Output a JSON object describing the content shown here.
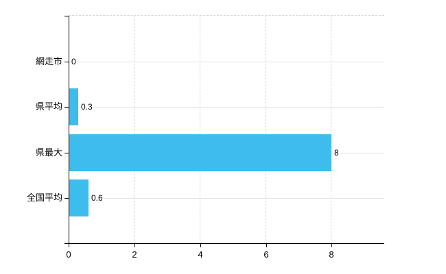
{
  "chart_data": {
    "type": "bar",
    "orientation": "horizontal",
    "title": "",
    "xlabel": "",
    "ylabel": "",
    "categories": [
      "網走市",
      "県平均",
      "県最大",
      "全国平均"
    ],
    "values": [
      0,
      0.3,
      8,
      0.6
    ],
    "value_labels": [
      "0",
      "0.3",
      "8",
      "0.6"
    ],
    "x_ticks": [
      0,
      2,
      4,
      6,
      8
    ],
    "xlim": [
      0,
      9.6
    ],
    "grid": true,
    "legend_position": "none",
    "bar_color": "#3cbdee",
    "axis_color": "#000000",
    "vgrid_color": "#d6d6d6",
    "hgrid_color": "#dce3dc",
    "text_color": "#000000",
    "background_color": "#ffffff"
  }
}
